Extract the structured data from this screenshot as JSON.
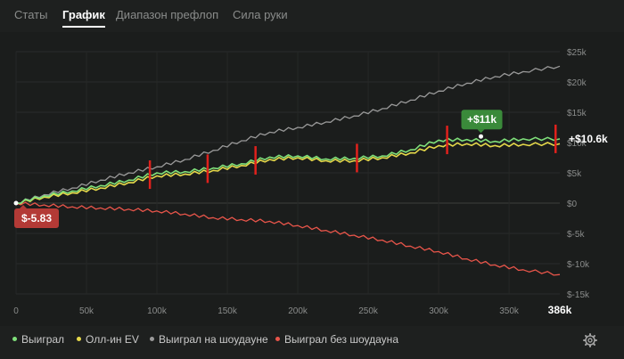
{
  "tabs": [
    {
      "label": "Статы"
    },
    {
      "label": "График"
    },
    {
      "label": "Диапазон префлоп"
    },
    {
      "label": "Сила руки"
    }
  ],
  "active_tab": "График",
  "chart_data": {
    "type": "line",
    "x_ticks": [
      "0",
      "50k",
      "100k",
      "150k",
      "200k",
      "250k",
      "300k",
      "350k"
    ],
    "x_end_label": "386k",
    "y_ticks": [
      "$25k",
      "$20k",
      "$15k",
      "$10k",
      "$5k",
      "$0",
      "$-5k",
      "$-10k",
      "$-15k"
    ],
    "xlim": [
      0,
      386000
    ],
    "ylim": [
      -15000,
      25000
    ],
    "series": [
      {
        "name": "Выиграл",
        "color": "#7fe07a",
        "x": [
          0,
          20000,
          40000,
          60000,
          80000,
          100000,
          120000,
          140000,
          160000,
          180000,
          200000,
          220000,
          240000,
          260000,
          280000,
          300000,
          320000,
          340000,
          360000,
          386000
        ],
        "y": [
          0,
          1200,
          2000,
          2900,
          3800,
          5000,
          5200,
          5800,
          6500,
          7600,
          7800,
          7300,
          7400,
          7800,
          8800,
          10400,
          10500,
          10200,
          10600,
          10600
        ]
      },
      {
        "name": "Олл-ин EV",
        "color": "#e6d94a",
        "x": [
          0,
          20000,
          40000,
          60000,
          80000,
          100000,
          120000,
          140000,
          160000,
          180000,
          200000,
          220000,
          240000,
          260000,
          280000,
          300000,
          320000,
          340000,
          360000,
          386000
        ],
        "y": [
          0,
          1000,
          1700,
          2500,
          3400,
          4500,
          4800,
          5400,
          6200,
          7200,
          7500,
          7000,
          7000,
          7500,
          8300,
          9500,
          9800,
          9500,
          9700,
          9800
        ]
      },
      {
        "name": "Выиграл на шоудауне",
        "color": "#9a9a9a",
        "x": [
          0,
          20000,
          40000,
          60000,
          80000,
          100000,
          120000,
          140000,
          160000,
          180000,
          200000,
          220000,
          240000,
          260000,
          280000,
          300000,
          320000,
          340000,
          360000,
          386000
        ],
        "y": [
          0,
          1400,
          2500,
          3800,
          5000,
          6000,
          7200,
          8700,
          10300,
          11700,
          12500,
          13400,
          14400,
          15600,
          17000,
          18500,
          19800,
          20900,
          21700,
          22600
        ]
      },
      {
        "name": "Выиграл без шоудауна",
        "color": "#e8554a",
        "x": [
          0,
          20000,
          40000,
          60000,
          80000,
          100000,
          120000,
          140000,
          160000,
          180000,
          200000,
          220000,
          240000,
          260000,
          280000,
          300000,
          320000,
          340000,
          360000,
          386000
        ],
        "y": [
          0,
          -300,
          -600,
          -800,
          -1000,
          -1300,
          -1800,
          -2400,
          -2700,
          -3000,
          -3700,
          -4500,
          -5300,
          -6100,
          -7100,
          -8000,
          -9200,
          -10200,
          -11000,
          -11800
        ]
      }
    ],
    "markers_x": [
      95000,
      136000,
      170000,
      242000,
      306000,
      383000
    ],
    "callouts": [
      {
        "text": "+$11k",
        "x": 330000,
        "y": 11000,
        "color": "#3a8a3a"
      },
      {
        "text": "$-5.83",
        "x": 0,
        "y": 0,
        "color": "#b33a36"
      }
    ],
    "end_label": "+$10.6k",
    "grid": true,
    "legend_placement": "bottom-left"
  },
  "legend": [
    {
      "label": "Выиграл",
      "color": "#7fe07a"
    },
    {
      "label": "Олл-ин EV",
      "color": "#e6d94a"
    },
    {
      "label": "Выиграл на шоудауне",
      "color": "#9a9a9a"
    },
    {
      "label": "Выиграл без шоудауна",
      "color": "#e8554a"
    }
  ],
  "settings_icon": "gear-icon"
}
